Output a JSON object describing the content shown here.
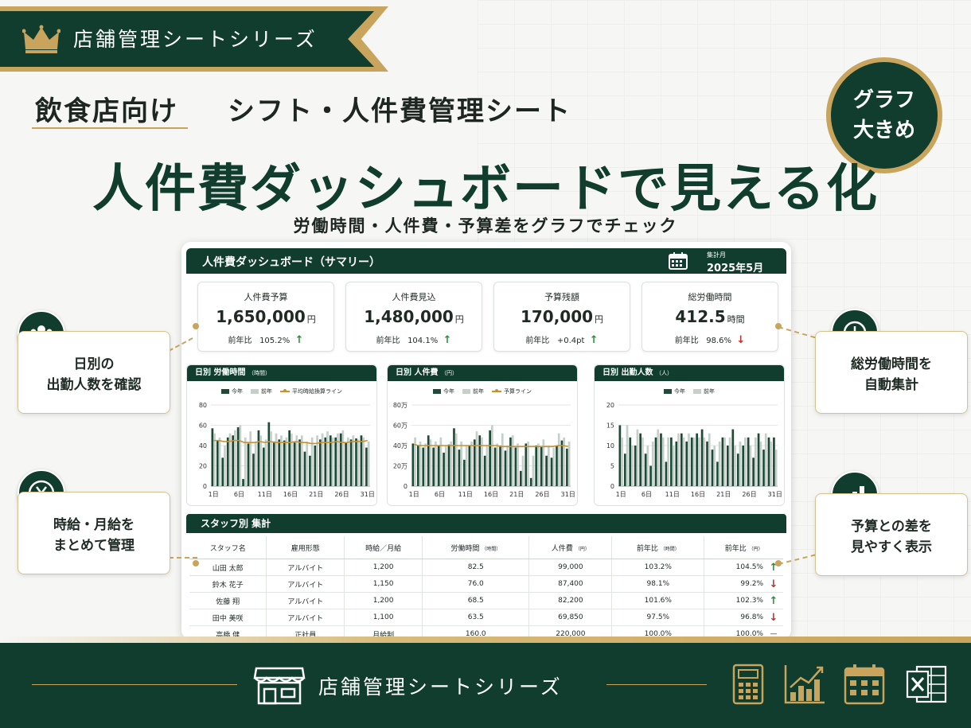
{
  "series_label": "店舗管理シートシリーズ",
  "subtitle": {
    "target": "飲食店向け",
    "product": "シフト・人件費管理シート"
  },
  "badge": {
    "line1": "グラフ",
    "line2": "大きめ"
  },
  "headline": "人件費ダッシュボードで見える化",
  "tagline": "労働時間・人件費・予算差をグラフでチェック",
  "dashboard": {
    "title": "人件費ダッシュボード（サマリー）",
    "period_label": "集計月",
    "period": "2025年5月"
  },
  "kpis": [
    {
      "label": "人件費予算",
      "value": "1,650,000",
      "unit": "円",
      "compare_label": "前年比",
      "compare": "105.2%",
      "trend": "↑"
    },
    {
      "label": "人件費見込",
      "value": "1,480,000",
      "unit": "円",
      "compare_label": "前年比",
      "compare": "104.1%",
      "trend": "↑"
    },
    {
      "label": "予算残額",
      "value": "170,000",
      "unit": "円",
      "compare_label": "前年比",
      "compare": "+0.4pt",
      "trend": "↑"
    },
    {
      "label": "総労働時間",
      "value": "412.5",
      "unit": "時間",
      "compare_label": "前年比",
      "compare": "98.6%",
      "trend": "↓"
    }
  ],
  "colors": {
    "primary": "#103d2d",
    "gold": "#c9a45c",
    "this_year": "#1f4a38",
    "last_year": "#c5d0cb",
    "line": "#c8922e",
    "up": "#2e8b3b",
    "down": "#c0312b"
  },
  "chart_data": [
    {
      "type": "bar",
      "title": "日別 労働時間",
      "unit": "（時間）",
      "legend": [
        "今年",
        "前年",
        "平均時給換算ライン"
      ],
      "ylim": [
        0,
        80
      ],
      "yticks": [
        0,
        20,
        40,
        60,
        80
      ],
      "x_tick_labels": [
        "1日",
        "6日",
        "11日",
        "16日",
        "21日",
        "26日",
        "31日"
      ],
      "series": [
        {
          "name": "今年",
          "values": [
            57,
            45,
            28,
            48,
            50,
            58,
            7,
            42,
            32,
            55,
            38,
            63,
            44,
            46,
            45,
            55,
            43,
            46,
            34,
            30,
            40,
            46,
            48,
            50,
            48,
            52,
            43,
            46,
            47,
            50,
            38
          ]
        },
        {
          "name": "前年",
          "values": [
            52,
            48,
            40,
            52,
            55,
            60,
            48,
            54,
            44,
            50,
            46,
            54,
            52,
            50,
            48,
            52,
            50,
            50,
            44,
            48,
            50,
            52,
            54,
            48,
            52,
            55,
            48,
            50,
            46,
            48,
            44
          ]
        },
        {
          "name": "平均時給換算ライン",
          "values": [
            45,
            45,
            44,
            44,
            45,
            45,
            43,
            43,
            43,
            44,
            43,
            44,
            43,
            43,
            43,
            43,
            44,
            43,
            43,
            42,
            42,
            43,
            43,
            43,
            44,
            43,
            43,
            44,
            44,
            44,
            45
          ]
        }
      ]
    },
    {
      "type": "bar",
      "title": "日別 人件費",
      "unit": "（円）",
      "legend": [
        "今年",
        "前年",
        "予算ライン"
      ],
      "ylim": [
        0,
        80
      ],
      "yticks": [
        "0",
        "20万",
        "40万",
        "60万",
        "80万"
      ],
      "x_tick_labels": [
        "1日",
        "6日",
        "11日",
        "16日",
        "21日",
        "26日",
        "31日"
      ],
      "series": [
        {
          "name": "今年",
          "values": [
            42,
            40,
            38,
            50,
            38,
            40,
            33,
            41,
            57,
            36,
            26,
            40,
            46,
            50,
            30,
            55,
            38,
            40,
            35,
            48,
            38,
            15,
            42,
            8,
            40,
            39,
            30,
            28,
            40,
            45,
            37
          ]
        },
        {
          "name": "前年",
          "values": [
            48,
            44,
            42,
            46,
            44,
            48,
            40,
            44,
            52,
            44,
            40,
            44,
            54,
            48,
            40,
            60,
            42,
            52,
            40,
            50,
            42,
            30,
            44,
            30,
            42,
            46,
            40,
            38,
            52,
            48,
            44
          ]
        },
        {
          "name": "予算ライン",
          "values": [
            41,
            40,
            40,
            40,
            40,
            40,
            40,
            40,
            40,
            40,
            40,
            40,
            40,
            40,
            40,
            40,
            40,
            39,
            39,
            39,
            39,
            39,
            39,
            39,
            39,
            39,
            39,
            39,
            40,
            40,
            39
          ]
        }
      ]
    },
    {
      "type": "bar",
      "title": "日別 出勤人数",
      "unit": "（人）",
      "legend": [
        "今年",
        "前年"
      ],
      "ylim": [
        0,
        20
      ],
      "yticks": [
        0,
        5,
        10,
        15,
        20
      ],
      "x_tick_labels": [
        "1日",
        "6日",
        "11日",
        "16日",
        "21日",
        "26日",
        "31日"
      ],
      "series": [
        {
          "name": "今年",
          "values": [
            15,
            8,
            12,
            10,
            13,
            8,
            5,
            12,
            13,
            6,
            12,
            11,
            13,
            11,
            12,
            13,
            14,
            11,
            9,
            6,
            12,
            10,
            14,
            8,
            10,
            12,
            7,
            13,
            9,
            12,
            12
          ]
        },
        {
          "name": "前年",
          "values": [
            12,
            15,
            10,
            14,
            12,
            10,
            11,
            14,
            12,
            12,
            10,
            13,
            12,
            13,
            12,
            12,
            12,
            13,
            10,
            11,
            12,
            12,
            10,
            11,
            12,
            10,
            12,
            11,
            13,
            11,
            9
          ]
        }
      ]
    }
  ],
  "staff": {
    "title": "スタッフ別 集計",
    "columns": [
      "スタッフ名",
      "雇用形態",
      "時給／月給",
      "労働時間",
      "人件費",
      "前年比",
      "前年比"
    ],
    "column_units": [
      "",
      "",
      "",
      "（時間）",
      "（円）",
      "（時間）",
      "（円）"
    ],
    "rows": [
      {
        "name": "山田 太郎",
        "type": "アルバイト",
        "wage": "1,200",
        "hours": "82.5",
        "cost": "99,000",
        "yoy_hours": "103.2%",
        "yoy_cost": "104.5%",
        "trend": "↑"
      },
      {
        "name": "鈴木 花子",
        "type": "アルバイト",
        "wage": "1,150",
        "hours": "76.0",
        "cost": "87,400",
        "yoy_hours": "98.1%",
        "yoy_cost": "99.2%",
        "trend": "↓"
      },
      {
        "name": "佐藤 翔",
        "type": "アルバイト",
        "wage": "1,200",
        "hours": "68.5",
        "cost": "82,200",
        "yoy_hours": "101.6%",
        "yoy_cost": "102.3%",
        "trend": "↑"
      },
      {
        "name": "田中 美咲",
        "type": "アルバイト",
        "wage": "1,100",
        "hours": "63.5",
        "cost": "69,850",
        "yoy_hours": "97.5%",
        "yoy_cost": "96.8%",
        "trend": "↓"
      },
      {
        "name": "高橋 健",
        "type": "正社員",
        "wage": "月給制",
        "hours": "160.0",
        "cost": "220,000",
        "yoy_hours": "100.0%",
        "yoy_cost": "100.0%",
        "trend": "—"
      }
    ]
  },
  "features": {
    "left_top": {
      "line1": "日別の",
      "line2": "出勤人数を確認",
      "icon": "people-icon"
    },
    "left_bottom": {
      "line1": "時給・月給を",
      "line2": "まとめて管理",
      "icon": "yen-icon"
    },
    "right_top": {
      "line1": "総労働時間を",
      "line2": "自動集計",
      "icon": "clock-icon"
    },
    "right_bottom": {
      "line1": "予算との差を",
      "line2": "見やすく表示",
      "icon": "bar-chart-icon"
    }
  },
  "footer": {
    "title": "店舗管理シートシリーズ",
    "icons": [
      "calculator-icon",
      "growth-chart-icon",
      "calendar-icon",
      "excel-icon"
    ]
  }
}
